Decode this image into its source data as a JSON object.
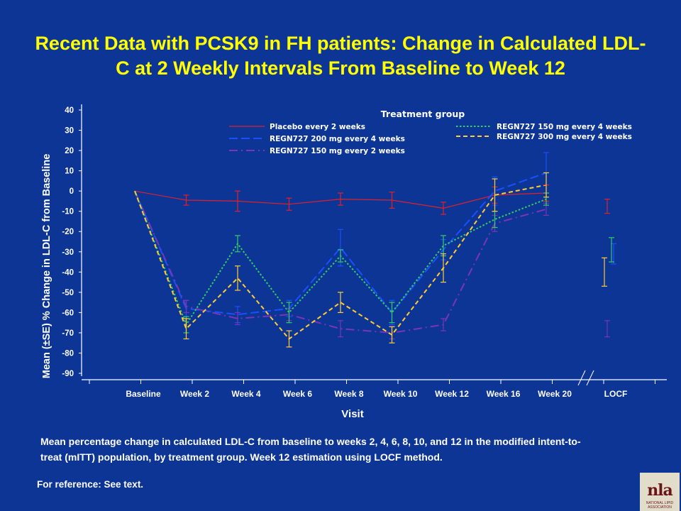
{
  "slide": {
    "title_line1": "Recent Data with PCSK9 in FH patients: Change in Calculated LDL-",
    "title_line2": "C at 2 Weekly Intervals  From Baseline to Week 12",
    "caption_line1": "Mean percentage change in calculated LDL-C from baseline to weeks 2, 4, 6, 8, 10, and 12 in the modified intent-to-",
    "caption_line2": "treat (mITT) population, by treatment group. Week 12 estimation using LOCF method.",
    "reference": "For reference: See text.",
    "logo_text": "nla",
    "logo_subtext": "NATIONAL LIPID ASSOCIATION",
    "colors": {
      "background": "#0d3596",
      "title": "#ffff00",
      "text": "#ffffff"
    }
  },
  "chart_data": {
    "type": "line",
    "title": "",
    "xlabel": "Visit",
    "ylabel": "Mean (±SE) % Change in LDL-C from Baseline",
    "categories": [
      "Baseline",
      "Week 2",
      "Week 4",
      "Week 6",
      "Week 8",
      "Week 10",
      "Week 12",
      "Week 16",
      "Week 20",
      "LOCF"
    ],
    "ylim": [
      -90,
      40
    ],
    "yticks": [
      "40",
      "30",
      "20",
      "10",
      "0",
      "-10",
      "-20",
      "-30",
      "-40",
      "-50",
      "-60",
      "-70",
      "-80",
      "-90"
    ],
    "legend_title": "Treatment group",
    "legend_position": "top",
    "grid": false,
    "series": [
      {
        "name": "Placebo every 2 weeks",
        "color": "#e0202a",
        "dash": "solid",
        "values": [
          0,
          -4.5,
          -5,
          -6.5,
          -4,
          -4.5,
          -8.5,
          -2,
          -1,
          -7.5
        ],
        "se": [
          0,
          2.5,
          5,
          3,
          3,
          4,
          3,
          4,
          4,
          3.5
        ]
      },
      {
        "name": "REGN727 200 mg every 4 weeks",
        "color": "#1a4fff",
        "dash": "long-dash",
        "values": [
          0,
          -58,
          -61,
          -58,
          -28,
          -60,
          -29,
          0,
          9,
          -31
        ],
        "se": [
          0,
          4,
          4,
          4,
          9,
          6,
          5,
          7,
          10,
          5
        ]
      },
      {
        "name": "REGN727 150 mg every 2 weeks",
        "color": "#7a35b5",
        "dash": "dash-dot",
        "values": [
          0,
          -57,
          -63,
          -61,
          -68,
          -70,
          -66,
          -16,
          -9,
          -68
        ],
        "se": [
          0,
          3,
          3,
          3,
          4,
          3,
          3,
          4,
          3,
          4
        ]
      },
      {
        "name": "REGN727 150 mg every 4 weeks",
        "color": "#33cc66",
        "dash": "dotted",
        "values": [
          0,
          -66,
          -26,
          -60,
          -32,
          -60,
          -27,
          -14,
          -4,
          -29
        ],
        "se": [
          0,
          4,
          4,
          5,
          3,
          5,
          5,
          4,
          3,
          6
        ]
      },
      {
        "name": "REGN727 300 mg every 4 weeks",
        "color": "#ffcc33",
        "dash": "dashed",
        "values": [
          0,
          -68,
          -43,
          -73,
          -55,
          -71,
          -38,
          -2,
          3,
          -40
        ],
        "se": [
          0,
          5,
          6,
          4,
          5,
          4,
          7,
          8,
          6,
          7
        ]
      }
    ]
  }
}
